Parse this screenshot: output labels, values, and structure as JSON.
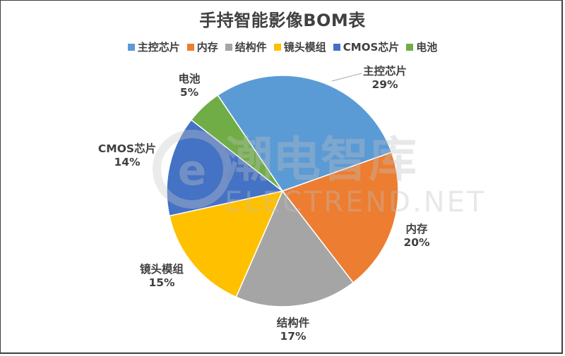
{
  "chart_data": {
    "type": "pie",
    "title": "手持智能影像BOM表",
    "categories": [
      "主控芯片",
      "内存",
      "结构件",
      "镜头模组",
      "CMOS芯片",
      "电池"
    ],
    "values": [
      29,
      20,
      17,
      15,
      14,
      5
    ],
    "value_labels": [
      "29%",
      "20%",
      "17%",
      "15%",
      "14%",
      "5%"
    ],
    "colors": [
      "#5B9BD5",
      "#ED7D31",
      "#A5A5A5",
      "#FFC000",
      "#4472C4",
      "#70AD47"
    ],
    "legend_position": "top",
    "start_angle_deg": 28,
    "watermark": "潮电智库 ELECTREND.NET"
  },
  "title": "手持智能影像BOM表",
  "legend": [
    {
      "label": "主控芯片",
      "color": "#5B9BD5"
    },
    {
      "label": "内存",
      "color": "#ED7D31"
    },
    {
      "label": "结构件",
      "color": "#A5A5A5"
    },
    {
      "label": "镜头模组",
      "color": "#FFC000"
    },
    {
      "label": "CMOS芯片",
      "color": "#4472C4"
    },
    {
      "label": "电池",
      "color": "#70AD47"
    }
  ],
  "labels": [
    {
      "name": "主控芯片",
      "pct": "29%"
    },
    {
      "name": "内存",
      "pct": "20%"
    },
    {
      "name": "结构件",
      "pct": "17%"
    },
    {
      "name": "镜头模组",
      "pct": "15%"
    },
    {
      "name": "CMOS芯片",
      "pct": "14%"
    },
    {
      "name": "电池",
      "pct": "5%"
    }
  ],
  "watermark": {
    "cn": "潮电智库",
    "en": "ELECTREND.NET"
  }
}
